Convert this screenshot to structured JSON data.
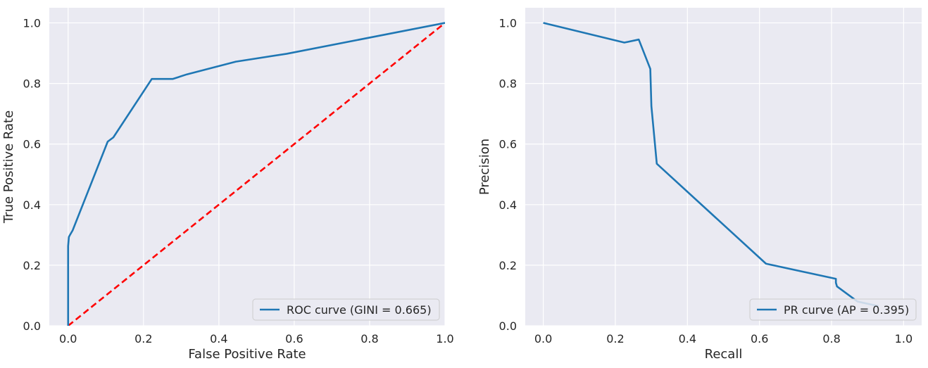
{
  "chart_data": [
    {
      "type": "line",
      "xlabel": "False Positive Rate",
      "ylabel": "True Positive Rate",
      "xlim": [
        -0.05,
        1.0
      ],
      "ylim": [
        0.0,
        1.05
      ],
      "xticks": [
        0.0,
        0.2,
        0.4,
        0.6,
        0.8,
        1.0
      ],
      "xtick_labels": [
        "0.0",
        "0.2",
        "0.4",
        "0.6",
        "0.8",
        "1.0"
      ],
      "yticks": [
        0.0,
        0.2,
        0.4,
        0.6,
        0.8,
        1.0
      ],
      "ytick_labels": [
        "0.0",
        "0.2",
        "0.4",
        "0.6",
        "0.8",
        "1.0"
      ],
      "grid": true,
      "background": "#eaeaf2",
      "legend_position": "lower-right",
      "series": [
        {
          "name": "ROC curve (GINI = 0.665)",
          "color": "#1f77b4",
          "style": "solid",
          "in_legend": true,
          "x": [
            0.0,
            0.0,
            0.002,
            0.004,
            0.012,
            0.105,
            0.12,
            0.222,
            0.278,
            0.315,
            0.445,
            0.58,
            1.0
          ],
          "y": [
            0.0,
            0.263,
            0.293,
            0.298,
            0.315,
            0.608,
            0.622,
            0.815,
            0.815,
            0.83,
            0.872,
            0.898,
            1.0
          ]
        },
        {
          "name": "",
          "color": "#ff0000",
          "style": "dashed",
          "in_legend": false,
          "x": [
            0.0,
            1.0
          ],
          "y": [
            0.0,
            1.0
          ]
        }
      ]
    },
    {
      "type": "line",
      "xlabel": "Recall",
      "ylabel": "Precision",
      "xlim": [
        -0.05,
        1.05
      ],
      "ylim": [
        0.0,
        1.05
      ],
      "xticks": [
        0.0,
        0.2,
        0.4,
        0.6,
        0.8,
        1.0
      ],
      "xtick_labels": [
        "0.0",
        "0.2",
        "0.4",
        "0.6",
        "0.8",
        "1.0"
      ],
      "yticks": [
        0.0,
        0.2,
        0.4,
        0.6,
        0.8,
        1.0
      ],
      "ytick_labels": [
        "0.0",
        "0.2",
        "0.4",
        "0.6",
        "0.8",
        "1.0"
      ],
      "grid": true,
      "background": "#eaeaf2",
      "legend_position": "lower-right",
      "series": [
        {
          "name": "PR curve (AP = 0.395)",
          "color": "#1f77b4",
          "style": "solid",
          "in_legend": true,
          "x": [
            0.0,
            0.225,
            0.265,
            0.297,
            0.3,
            0.315,
            0.618,
            0.812,
            0.812,
            0.815,
            0.872,
            0.93
          ],
          "y": [
            1.0,
            0.935,
            0.945,
            0.848,
            0.725,
            0.535,
            0.205,
            0.155,
            0.142,
            0.13,
            0.08,
            0.065
          ]
        }
      ]
    }
  ]
}
